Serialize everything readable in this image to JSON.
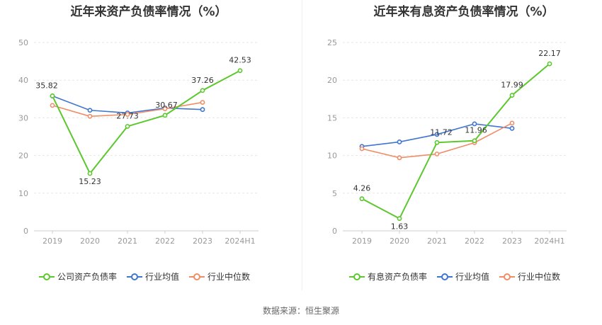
{
  "source": "数据来源：恒生聚源",
  "colors": {
    "company": "#5cc82e",
    "industry_avg": "#3f76d1",
    "industry_median": "#f08c66",
    "grid": "#e6e6e6",
    "axis": "#999999"
  },
  "chart_data": [
    {
      "type": "line",
      "title": "近年来资产负债率情况（%）",
      "categories": [
        "2019",
        "2020",
        "2021",
        "2022",
        "2023",
        "2024H1"
      ],
      "ylim": [
        0,
        50
      ],
      "yticks": [
        0,
        10,
        20,
        30,
        40,
        50
      ],
      "legend_position": "bottom",
      "grid": true,
      "series": [
        {
          "name": "公司资产负债率",
          "color": "#5cc82e",
          "values": [
            35.82,
            15.23,
            27.73,
            30.67,
            37.26,
            42.53
          ],
          "labels": [
            "35.82",
            "15.23",
            "27.73",
            "30.67",
            "37.26",
            "42.53"
          ]
        },
        {
          "name": "行业均值",
          "color": "#3f76d1",
          "values": [
            35.8,
            32.0,
            31.3,
            32.6,
            32.2,
            null
          ]
        },
        {
          "name": "行业中位数",
          "color": "#f08c66",
          "values": [
            33.3,
            30.4,
            30.9,
            32.4,
            34.1,
            null
          ]
        }
      ]
    },
    {
      "type": "line",
      "title": "近年来有息资产负债率情况（%）",
      "categories": [
        "2019",
        "2020",
        "2021",
        "2022",
        "2023",
        "2024H1"
      ],
      "ylim": [
        0,
        25
      ],
      "yticks": [
        0,
        5,
        10,
        15,
        20,
        25
      ],
      "legend_position": "bottom",
      "grid": true,
      "series": [
        {
          "name": "有息资产负债率",
          "color": "#5cc82e",
          "values": [
            4.26,
            1.63,
            11.72,
            11.96,
            17.99,
            22.17
          ],
          "labels": [
            "4.26",
            "1.63",
            "11.72",
            "11.96",
            "17.99",
            "22.17"
          ]
        },
        {
          "name": "行业均值",
          "color": "#3f76d1",
          "values": [
            11.2,
            11.8,
            12.8,
            14.2,
            13.6,
            null
          ]
        },
        {
          "name": "行业中位数",
          "color": "#f08c66",
          "values": [
            10.9,
            9.7,
            10.2,
            11.7,
            14.3,
            null
          ]
        }
      ]
    }
  ]
}
